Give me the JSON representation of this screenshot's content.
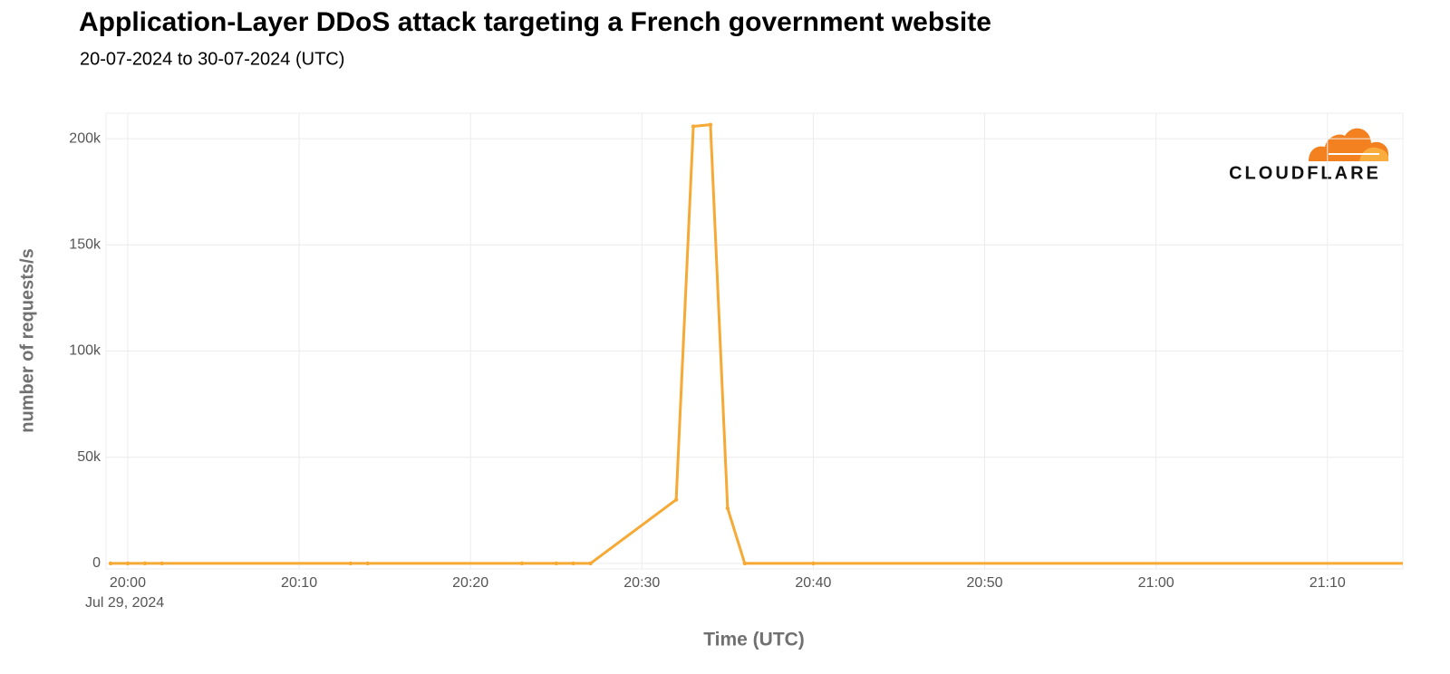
{
  "chart_data": {
    "type": "line",
    "title": "Application-Layer DDoS attack targeting a French government website",
    "subtitle": "20-07-2024 to 30-07-2024 (UTC)",
    "y_label": "number of requests/s",
    "x_label": "Time (UTC)",
    "logo_text": "CLOUDFLARE",
    "x": [
      "2024-07-29 19:59",
      "2024-07-29 20:00",
      "2024-07-29 20:01",
      "2024-07-29 20:02",
      "2024-07-29 20:13",
      "2024-07-29 20:14",
      "2024-07-29 20:23",
      "2024-07-29 20:25",
      "2024-07-29 20:26",
      "2024-07-29 20:27",
      "2024-07-29 20:32",
      "2024-07-29 20:33",
      "2024-07-29 20:34",
      "2024-07-29 20:35",
      "2024-07-29 20:36",
      "2024-07-29 20:40",
      "2024-07-29 21:15"
    ],
    "series": [
      {
        "name": "requests/s",
        "color": "#f6a935",
        "values": [
          0,
          0,
          0,
          0,
          0,
          0,
          0,
          0,
          0,
          0,
          30000,
          205800,
          206600,
          26000,
          0,
          0,
          0
        ]
      }
    ],
    "xlim": [
      "2024-07-29 19:58:44",
      "2024-07-29 21:14:24"
    ],
    "xticks": [
      {
        "value": "2024-07-29 20:00",
        "label": "20:00"
      },
      {
        "value": "2024-07-29 20:10",
        "label": "20:10"
      },
      {
        "value": "2024-07-29 20:20",
        "label": "20:20"
      },
      {
        "value": "2024-07-29 20:30",
        "label": "20:30"
      },
      {
        "value": "2024-07-29 20:40",
        "label": "20:40"
      },
      {
        "value": "2024-07-29 20:50",
        "label": "20:50"
      },
      {
        "value": "2024-07-29 21:00",
        "label": "21:00"
      },
      {
        "value": "2024-07-29 21:10",
        "label": "21:10"
      }
    ],
    "xtick_date_label": "Jul 29, 2024",
    "ylim": [
      -2600,
      212000
    ],
    "yticks": [
      0,
      {
        "value": 50000,
        "label": "50k"
      },
      {
        "value": 100000,
        "label": "100k"
      },
      {
        "value": 150000,
        "label": "150k"
      },
      {
        "value": 200000,
        "label": "200k"
      }
    ],
    "grid": true
  }
}
